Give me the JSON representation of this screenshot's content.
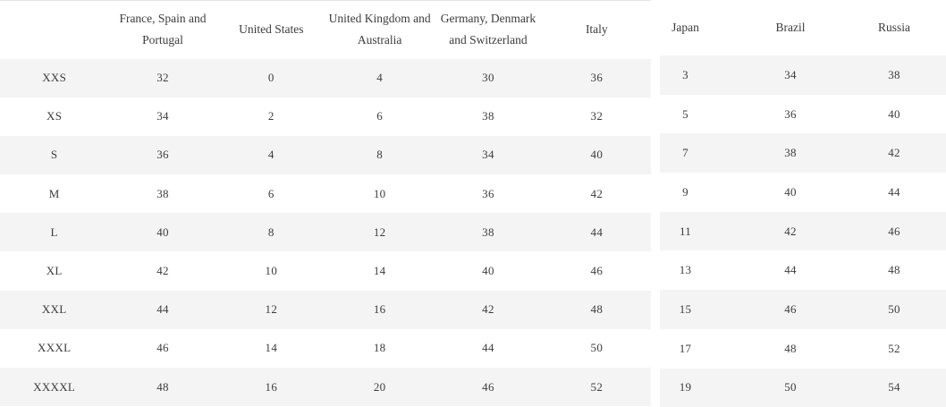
{
  "left_table": {
    "columns": [
      "",
      "France, Spain and Portugal",
      "United States",
      "United Kingdom and Australia",
      "Germany, Denmark and Switzerland",
      "Italy"
    ],
    "rows": [
      {
        "label": "XXS",
        "values": [
          "32",
          "0",
          "4",
          "30",
          "36"
        ]
      },
      {
        "label": "XS",
        "values": [
          "34",
          "2",
          "6",
          "38",
          "32"
        ]
      },
      {
        "label": "S",
        "values": [
          "36",
          "4",
          "8",
          "34",
          "40"
        ]
      },
      {
        "label": "M",
        "values": [
          "38",
          "6",
          "10",
          "36",
          "42"
        ]
      },
      {
        "label": "L",
        "values": [
          "40",
          "8",
          "12",
          "38",
          "44"
        ]
      },
      {
        "label": "XL",
        "values": [
          "42",
          "10",
          "14",
          "40",
          "46"
        ]
      },
      {
        "label": "XXL",
        "values": [
          "44",
          "12",
          "16",
          "42",
          "48"
        ]
      },
      {
        "label": "XXXL",
        "values": [
          "46",
          "14",
          "18",
          "44",
          "50"
        ]
      },
      {
        "label": "XXXXL",
        "values": [
          "48",
          "16",
          "20",
          "46",
          "52"
        ]
      }
    ]
  },
  "right_table": {
    "columns": [
      "Japan",
      "Brazil",
      "Russia"
    ],
    "rows": [
      [
        "3",
        "34",
        "38"
      ],
      [
        "5",
        "36",
        "40"
      ],
      [
        "7",
        "38",
        "42"
      ],
      [
        "9",
        "40",
        "44"
      ],
      [
        "11",
        "42",
        "46"
      ],
      [
        "13",
        "44",
        "48"
      ],
      [
        "15",
        "46",
        "50"
      ],
      [
        "17",
        "48",
        "52"
      ],
      [
        "19",
        "50",
        "54"
      ]
    ]
  },
  "colors": {
    "stripe": "#f4f4f4",
    "border": "#e4e4e4",
    "text": "#3c3c3c",
    "background": "#ffffff"
  }
}
